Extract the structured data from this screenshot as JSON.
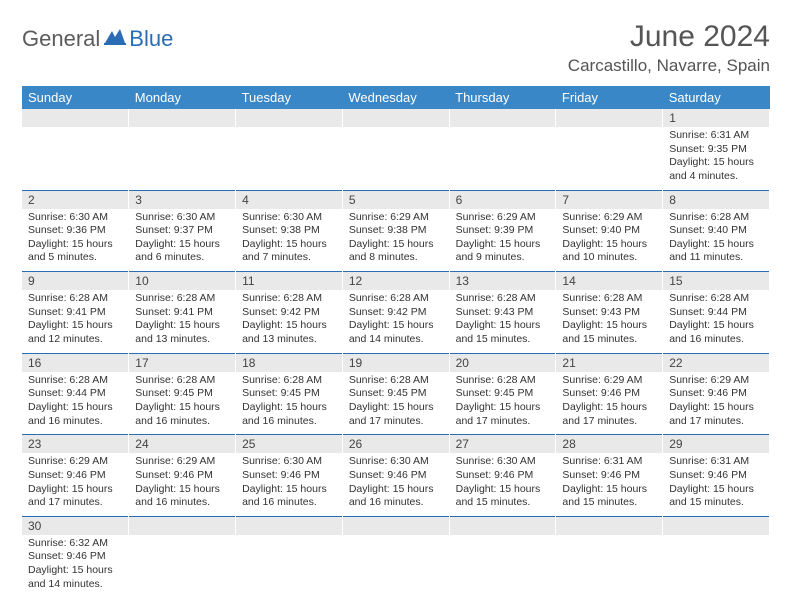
{
  "logo": {
    "part1": "General",
    "part2": "Blue",
    "color1": "#5c5c5c",
    "color2": "#2a6db5"
  },
  "title": "June 2024",
  "location": "Carcastillo, Navarre, Spain",
  "colors": {
    "headerBg": "#3a87c8",
    "headerText": "#ffffff",
    "dayNumBg": "#e9e9e9",
    "rowBorder": "#2a6db5"
  },
  "weekdays": [
    "Sunday",
    "Monday",
    "Tuesday",
    "Wednesday",
    "Thursday",
    "Friday",
    "Saturday"
  ],
  "weeks": [
    [
      null,
      null,
      null,
      null,
      null,
      null,
      {
        "n": "1",
        "sr": "Sunrise: 6:31 AM",
        "ss": "Sunset: 9:35 PM",
        "d1": "Daylight: 15 hours",
        "d2": "and 4 minutes."
      }
    ],
    [
      {
        "n": "2",
        "sr": "Sunrise: 6:30 AM",
        "ss": "Sunset: 9:36 PM",
        "d1": "Daylight: 15 hours",
        "d2": "and 5 minutes."
      },
      {
        "n": "3",
        "sr": "Sunrise: 6:30 AM",
        "ss": "Sunset: 9:37 PM",
        "d1": "Daylight: 15 hours",
        "d2": "and 6 minutes."
      },
      {
        "n": "4",
        "sr": "Sunrise: 6:30 AM",
        "ss": "Sunset: 9:38 PM",
        "d1": "Daylight: 15 hours",
        "d2": "and 7 minutes."
      },
      {
        "n": "5",
        "sr": "Sunrise: 6:29 AM",
        "ss": "Sunset: 9:38 PM",
        "d1": "Daylight: 15 hours",
        "d2": "and 8 minutes."
      },
      {
        "n": "6",
        "sr": "Sunrise: 6:29 AM",
        "ss": "Sunset: 9:39 PM",
        "d1": "Daylight: 15 hours",
        "d2": "and 9 minutes."
      },
      {
        "n": "7",
        "sr": "Sunrise: 6:29 AM",
        "ss": "Sunset: 9:40 PM",
        "d1": "Daylight: 15 hours",
        "d2": "and 10 minutes."
      },
      {
        "n": "8",
        "sr": "Sunrise: 6:28 AM",
        "ss": "Sunset: 9:40 PM",
        "d1": "Daylight: 15 hours",
        "d2": "and 11 minutes."
      }
    ],
    [
      {
        "n": "9",
        "sr": "Sunrise: 6:28 AM",
        "ss": "Sunset: 9:41 PM",
        "d1": "Daylight: 15 hours",
        "d2": "and 12 minutes."
      },
      {
        "n": "10",
        "sr": "Sunrise: 6:28 AM",
        "ss": "Sunset: 9:41 PM",
        "d1": "Daylight: 15 hours",
        "d2": "and 13 minutes."
      },
      {
        "n": "11",
        "sr": "Sunrise: 6:28 AM",
        "ss": "Sunset: 9:42 PM",
        "d1": "Daylight: 15 hours",
        "d2": "and 13 minutes."
      },
      {
        "n": "12",
        "sr": "Sunrise: 6:28 AM",
        "ss": "Sunset: 9:42 PM",
        "d1": "Daylight: 15 hours",
        "d2": "and 14 minutes."
      },
      {
        "n": "13",
        "sr": "Sunrise: 6:28 AM",
        "ss": "Sunset: 9:43 PM",
        "d1": "Daylight: 15 hours",
        "d2": "and 15 minutes."
      },
      {
        "n": "14",
        "sr": "Sunrise: 6:28 AM",
        "ss": "Sunset: 9:43 PM",
        "d1": "Daylight: 15 hours",
        "d2": "and 15 minutes."
      },
      {
        "n": "15",
        "sr": "Sunrise: 6:28 AM",
        "ss": "Sunset: 9:44 PM",
        "d1": "Daylight: 15 hours",
        "d2": "and 16 minutes."
      }
    ],
    [
      {
        "n": "16",
        "sr": "Sunrise: 6:28 AM",
        "ss": "Sunset: 9:44 PM",
        "d1": "Daylight: 15 hours",
        "d2": "and 16 minutes."
      },
      {
        "n": "17",
        "sr": "Sunrise: 6:28 AM",
        "ss": "Sunset: 9:45 PM",
        "d1": "Daylight: 15 hours",
        "d2": "and 16 minutes."
      },
      {
        "n": "18",
        "sr": "Sunrise: 6:28 AM",
        "ss": "Sunset: 9:45 PM",
        "d1": "Daylight: 15 hours",
        "d2": "and 16 minutes."
      },
      {
        "n": "19",
        "sr": "Sunrise: 6:28 AM",
        "ss": "Sunset: 9:45 PM",
        "d1": "Daylight: 15 hours",
        "d2": "and 17 minutes."
      },
      {
        "n": "20",
        "sr": "Sunrise: 6:28 AM",
        "ss": "Sunset: 9:45 PM",
        "d1": "Daylight: 15 hours",
        "d2": "and 17 minutes."
      },
      {
        "n": "21",
        "sr": "Sunrise: 6:29 AM",
        "ss": "Sunset: 9:46 PM",
        "d1": "Daylight: 15 hours",
        "d2": "and 17 minutes."
      },
      {
        "n": "22",
        "sr": "Sunrise: 6:29 AM",
        "ss": "Sunset: 9:46 PM",
        "d1": "Daylight: 15 hours",
        "d2": "and 17 minutes."
      }
    ],
    [
      {
        "n": "23",
        "sr": "Sunrise: 6:29 AM",
        "ss": "Sunset: 9:46 PM",
        "d1": "Daylight: 15 hours",
        "d2": "and 17 minutes."
      },
      {
        "n": "24",
        "sr": "Sunrise: 6:29 AM",
        "ss": "Sunset: 9:46 PM",
        "d1": "Daylight: 15 hours",
        "d2": "and 16 minutes."
      },
      {
        "n": "25",
        "sr": "Sunrise: 6:30 AM",
        "ss": "Sunset: 9:46 PM",
        "d1": "Daylight: 15 hours",
        "d2": "and 16 minutes."
      },
      {
        "n": "26",
        "sr": "Sunrise: 6:30 AM",
        "ss": "Sunset: 9:46 PM",
        "d1": "Daylight: 15 hours",
        "d2": "and 16 minutes."
      },
      {
        "n": "27",
        "sr": "Sunrise: 6:30 AM",
        "ss": "Sunset: 9:46 PM",
        "d1": "Daylight: 15 hours",
        "d2": "and 15 minutes."
      },
      {
        "n": "28",
        "sr": "Sunrise: 6:31 AM",
        "ss": "Sunset: 9:46 PM",
        "d1": "Daylight: 15 hours",
        "d2": "and 15 minutes."
      },
      {
        "n": "29",
        "sr": "Sunrise: 6:31 AM",
        "ss": "Sunset: 9:46 PM",
        "d1": "Daylight: 15 hours",
        "d2": "and 15 minutes."
      }
    ],
    [
      {
        "n": "30",
        "sr": "Sunrise: 6:32 AM",
        "ss": "Sunset: 9:46 PM",
        "d1": "Daylight: 15 hours",
        "d2": "and 14 minutes."
      },
      null,
      null,
      null,
      null,
      null,
      null
    ]
  ]
}
